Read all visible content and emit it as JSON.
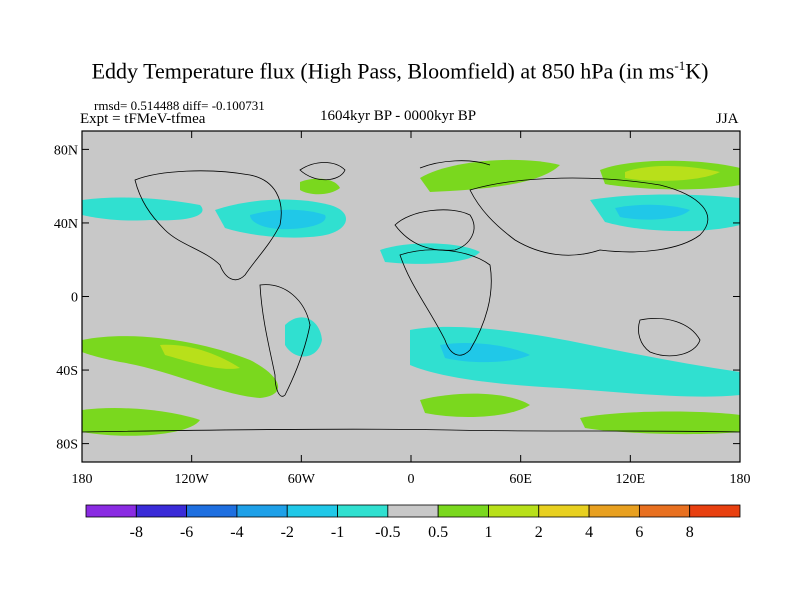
{
  "title": {
    "main": "Eddy Temperature flux (High Pass, Bloomfield) at 850 hPa (in ms",
    "sup": "-1",
    "end": "K)"
  },
  "stats": "rmsd= 0.514488 diff= -0.100731",
  "experiment": "Expt = tFMeV-tfmea",
  "period": "1604kyr BP - 0000kyr BP",
  "season": "JJA",
  "colors": {
    "background": "#c8c8c8",
    "coast": "#000000",
    "bins": [
      "#8a2be2",
      "#3a2bd8",
      "#1e6fe0",
      "#1ea0e8",
      "#20c8e8",
      "#30e0d0",
      "#c8c8c8",
      "#7ad81e",
      "#b8e01a",
      "#e8d020",
      "#e8a020",
      "#e87020",
      "#e84010"
    ]
  },
  "lat_labels": [
    "80N",
    "40N",
    "0",
    "40S",
    "80S"
  ],
  "lon_labels": [
    "180",
    "120W",
    "60W",
    "0",
    "60E",
    "120E",
    "180"
  ],
  "colorbar_labels": [
    "-8",
    "-6",
    "-4",
    "-2",
    "-1",
    "-0.5",
    "0.5",
    "1",
    "2",
    "4",
    "6",
    "8"
  ],
  "map_data": {
    "field": "eddy temperature flux anomaly",
    "level": "850 hPa",
    "lon_range": [
      -180,
      180
    ],
    "lat_range": [
      -90,
      90
    ],
    "features": [
      {
        "name": "North Pacific negative band",
        "sign": "negative",
        "value": -1
      },
      {
        "name": "North Atlantic negative core",
        "sign": "negative",
        "value": -2
      },
      {
        "name": "Eurasian/Siberian positive band",
        "sign": "positive",
        "value": 2
      },
      {
        "name": "North Pacific west negative band",
        "sign": "negative",
        "value": -2
      },
      {
        "name": "South Pacific positive band",
        "sign": "positive",
        "value": 2
      },
      {
        "name": "South Atlantic/Indian negative band",
        "sign": "negative",
        "value": -2
      },
      {
        "name": "Southern Ocean positive band",
        "sign": "positive",
        "value": 2
      }
    ]
  }
}
